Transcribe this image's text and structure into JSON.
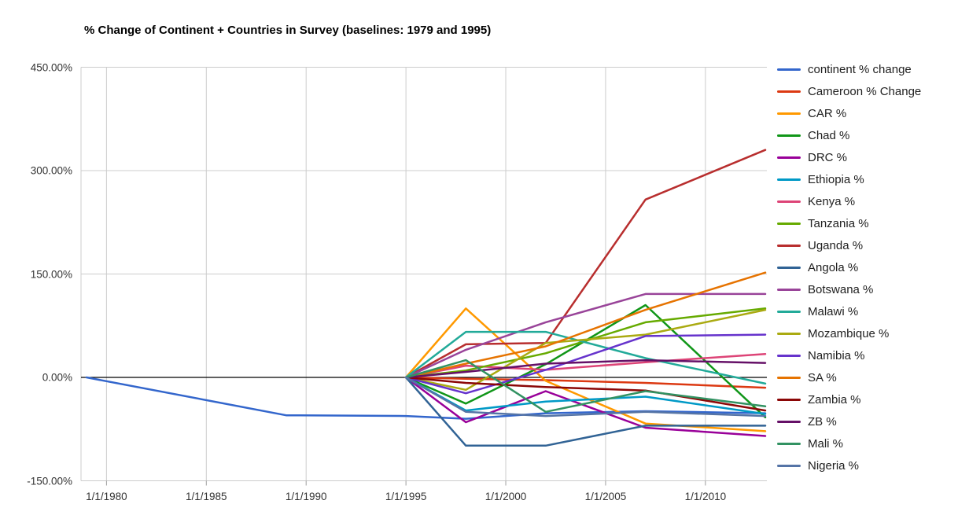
{
  "title": "% Change of Continent + Countries in Survey (baselines: 1979 and 1995)",
  "y_axis": {
    "tick_labels": [
      "450.00%",
      "300.00%",
      "150.00%",
      "0.00%",
      "-150.00%"
    ],
    "tick_values": [
      450,
      300,
      150,
      0,
      -150
    ]
  },
  "x_axis": {
    "tick_labels": [
      "1/1/1980",
      "1/1/1985",
      "1/1/1990",
      "1/1/1995",
      "1/1/2000",
      "1/1/2005",
      "1/1/2010"
    ],
    "tick_values": [
      1980,
      1985,
      1990,
      1995,
      2000,
      2005,
      2010
    ]
  },
  "chart_data": {
    "type": "line",
    "title": "% Change of Continent + Countries in Survey (baselines: 1979 and 1995)",
    "xlabel": "",
    "ylabel": "",
    "xlim": [
      1979,
      2013
    ],
    "ylim": [
      -150,
      450
    ],
    "grid": true,
    "legend_position": "right",
    "zero_line_color": "#000000",
    "gridline_color": "#cccccc",
    "series": [
      {
        "name": "continent % change",
        "color": "#3366CC",
        "points": [
          [
            1979,
            0
          ],
          [
            1989,
            -55
          ],
          [
            1995,
            -56
          ],
          [
            1998,
            -60
          ],
          [
            2002,
            -52
          ],
          [
            2007,
            -49
          ],
          [
            2013,
            -52
          ]
        ]
      },
      {
        "name": "Cameroon % Change",
        "color": "#DC3912",
        "points": [
          [
            1995,
            0
          ],
          [
            1998,
            -2
          ],
          [
            2002,
            -4
          ],
          [
            2007,
            -8
          ],
          [
            2013,
            -15
          ]
        ]
      },
      {
        "name": "CAR %",
        "color": "#FF9900",
        "points": [
          [
            1995,
            0
          ],
          [
            1998,
            100
          ],
          [
            2002,
            -5
          ],
          [
            2007,
            -67
          ],
          [
            2013,
            -78
          ]
        ]
      },
      {
        "name": "Chad %",
        "color": "#109618",
        "points": [
          [
            1995,
            0
          ],
          [
            1998,
            -38
          ],
          [
            2002,
            19
          ],
          [
            2007,
            105
          ],
          [
            2013,
            -58
          ]
        ]
      },
      {
        "name": "DRC %",
        "color": "#990099",
        "points": [
          [
            1995,
            0
          ],
          [
            1998,
            -65
          ],
          [
            2002,
            -20
          ],
          [
            2007,
            -73
          ],
          [
            2013,
            -85
          ]
        ]
      },
      {
        "name": "Ethiopia %",
        "color": "#0099C6",
        "points": [
          [
            1995,
            0
          ],
          [
            1998,
            -48
          ],
          [
            2002,
            -35
          ],
          [
            2007,
            -28
          ],
          [
            2013,
            -53
          ]
        ]
      },
      {
        "name": "Kenya %",
        "color": "#DD4477",
        "points": [
          [
            1995,
            0
          ],
          [
            1998,
            17
          ],
          [
            2002,
            11
          ],
          [
            2007,
            22
          ],
          [
            2013,
            34
          ]
        ]
      },
      {
        "name": "Tanzania %",
        "color": "#66AA00",
        "points": [
          [
            1995,
            0
          ],
          [
            1998,
            10
          ],
          [
            2002,
            35
          ],
          [
            2007,
            80
          ],
          [
            2013,
            100
          ]
        ]
      },
      {
        "name": "Uganda %",
        "color": "#B82E2E",
        "points": [
          [
            1995,
            0
          ],
          [
            1998,
            48
          ],
          [
            2002,
            50
          ],
          [
            2007,
            258
          ],
          [
            2013,
            330
          ]
        ]
      },
      {
        "name": "Angola %",
        "color": "#316395",
        "points": [
          [
            1995,
            0
          ],
          [
            1998,
            -99
          ],
          [
            2002,
            -99
          ],
          [
            2007,
            -70
          ],
          [
            2013,
            -70
          ]
        ]
      },
      {
        "name": "Botswana %",
        "color": "#994499",
        "points": [
          [
            1995,
            0
          ],
          [
            1998,
            40
          ],
          [
            2002,
            80
          ],
          [
            2007,
            121
          ],
          [
            2013,
            121
          ]
        ]
      },
      {
        "name": "Malawi %",
        "color": "#22AA99",
        "points": [
          [
            1995,
            0
          ],
          [
            1998,
            66
          ],
          [
            2002,
            66
          ],
          [
            2007,
            28
          ],
          [
            2013,
            -9
          ]
        ]
      },
      {
        "name": "Mozambique %",
        "color": "#AAAA11",
        "points": [
          [
            1995,
            0
          ],
          [
            1998,
            -18
          ],
          [
            2002,
            50
          ],
          [
            2007,
            62
          ],
          [
            2013,
            98
          ]
        ]
      },
      {
        "name": "Namibia %",
        "color": "#6633CC",
        "points": [
          [
            1995,
            0
          ],
          [
            1998,
            -23
          ],
          [
            2002,
            11
          ],
          [
            2007,
            60
          ],
          [
            2013,
            62
          ]
        ]
      },
      {
        "name": "SA %",
        "color": "#E67300",
        "points": [
          [
            1995,
            0
          ],
          [
            1998,
            20
          ],
          [
            2002,
            45
          ],
          [
            2007,
            98
          ],
          [
            2013,
            152
          ]
        ]
      },
      {
        "name": "Zambia %",
        "color": "#8B0707",
        "points": [
          [
            1995,
            0
          ],
          [
            1998,
            -8
          ],
          [
            2002,
            -14
          ],
          [
            2007,
            -19
          ],
          [
            2013,
            -48
          ]
        ]
      },
      {
        "name": "ZB %",
        "color": "#651067",
        "points": [
          [
            1995,
            0
          ],
          [
            1998,
            8
          ],
          [
            2002,
            20
          ],
          [
            2007,
            25
          ],
          [
            2013,
            21
          ]
        ]
      },
      {
        "name": "Mali %",
        "color": "#329262",
        "points": [
          [
            1995,
            0
          ],
          [
            1998,
            25
          ],
          [
            2002,
            -50
          ],
          [
            2007,
            -20
          ],
          [
            2013,
            -42
          ]
        ]
      },
      {
        "name": "Nigeria %",
        "color": "#5574A6",
        "points": [
          [
            1995,
            0
          ],
          [
            1998,
            -50
          ],
          [
            2002,
            -56
          ],
          [
            2007,
            -50
          ],
          [
            2013,
            -56
          ]
        ]
      }
    ]
  }
}
